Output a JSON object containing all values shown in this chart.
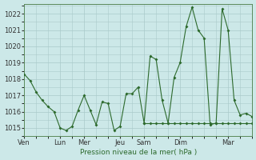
{
  "xlabel": "Pression niveau de la mer( hPa )",
  "ylim": [
    1014.5,
    1022.6
  ],
  "yticks": [
    1015,
    1016,
    1017,
    1018,
    1019,
    1020,
    1021,
    1022
  ],
  "day_labels": [
    "Ven",
    "Lun",
    "Mer",
    "Jeu",
    "Sam",
    "Dim",
    "Mar"
  ],
  "day_positions": [
    0,
    3,
    5,
    8,
    10,
    13,
    17
  ],
  "xlim": [
    0,
    19
  ],
  "line_color": "#2d6a2d",
  "bg_color": "#cce8e8",
  "grid_color": "#aacaca",
  "series": [
    [
      0,
      1018.3
    ],
    [
      0.5,
      1017.9
    ],
    [
      1,
      1017.2
    ],
    [
      1.5,
      1016.7
    ],
    [
      2,
      1016.3
    ],
    [
      2.5,
      1016.0
    ],
    [
      3,
      1015.0
    ],
    [
      3.5,
      1014.85
    ],
    [
      4,
      1015.1
    ],
    [
      4.5,
      1016.1
    ],
    [
      5,
      1017.0
    ],
    [
      5.5,
      1016.1
    ],
    [
      6,
      1015.2
    ],
    [
      6.5,
      1016.6
    ],
    [
      7,
      1016.5
    ],
    [
      7.5,
      1014.85
    ],
    [
      8,
      1015.1
    ],
    [
      8.5,
      1017.1
    ],
    [
      9,
      1017.1
    ],
    [
      9.5,
      1017.5
    ],
    [
      10,
      1015.3
    ],
    [
      10.5,
      1019.4
    ],
    [
      11,
      1019.2
    ],
    [
      11.5,
      1016.7
    ],
    [
      12,
      1015.3
    ],
    [
      12.5,
      1018.1
    ],
    [
      13,
      1019.0
    ],
    [
      13.5,
      1021.2
    ],
    [
      14,
      1022.4
    ],
    [
      14.5,
      1021.0
    ],
    [
      15,
      1020.5
    ],
    [
      15.5,
      1015.2
    ],
    [
      16,
      1015.3
    ],
    [
      16.5,
      1022.3
    ],
    [
      17,
      1021.0
    ],
    [
      17.5,
      1016.7
    ],
    [
      18,
      1015.8
    ],
    [
      18.5,
      1015.9
    ],
    [
      19,
      1015.7
    ]
  ],
  "flat_series": [
    [
      10,
      1015.3
    ],
    [
      10.5,
      1015.3
    ],
    [
      11,
      1015.3
    ],
    [
      11.5,
      1015.3
    ],
    [
      12,
      1015.3
    ],
    [
      12.5,
      1015.3
    ],
    [
      13,
      1015.3
    ],
    [
      13.5,
      1015.3
    ],
    [
      14,
      1015.3
    ],
    [
      14.5,
      1015.3
    ],
    [
      15,
      1015.3
    ],
    [
      15.5,
      1015.3
    ],
    [
      16,
      1015.3
    ],
    [
      16.5,
      1015.3
    ],
    [
      17,
      1015.3
    ],
    [
      17.5,
      1015.3
    ],
    [
      18,
      1015.3
    ],
    [
      18.5,
      1015.3
    ],
    [
      19,
      1015.3
    ]
  ]
}
